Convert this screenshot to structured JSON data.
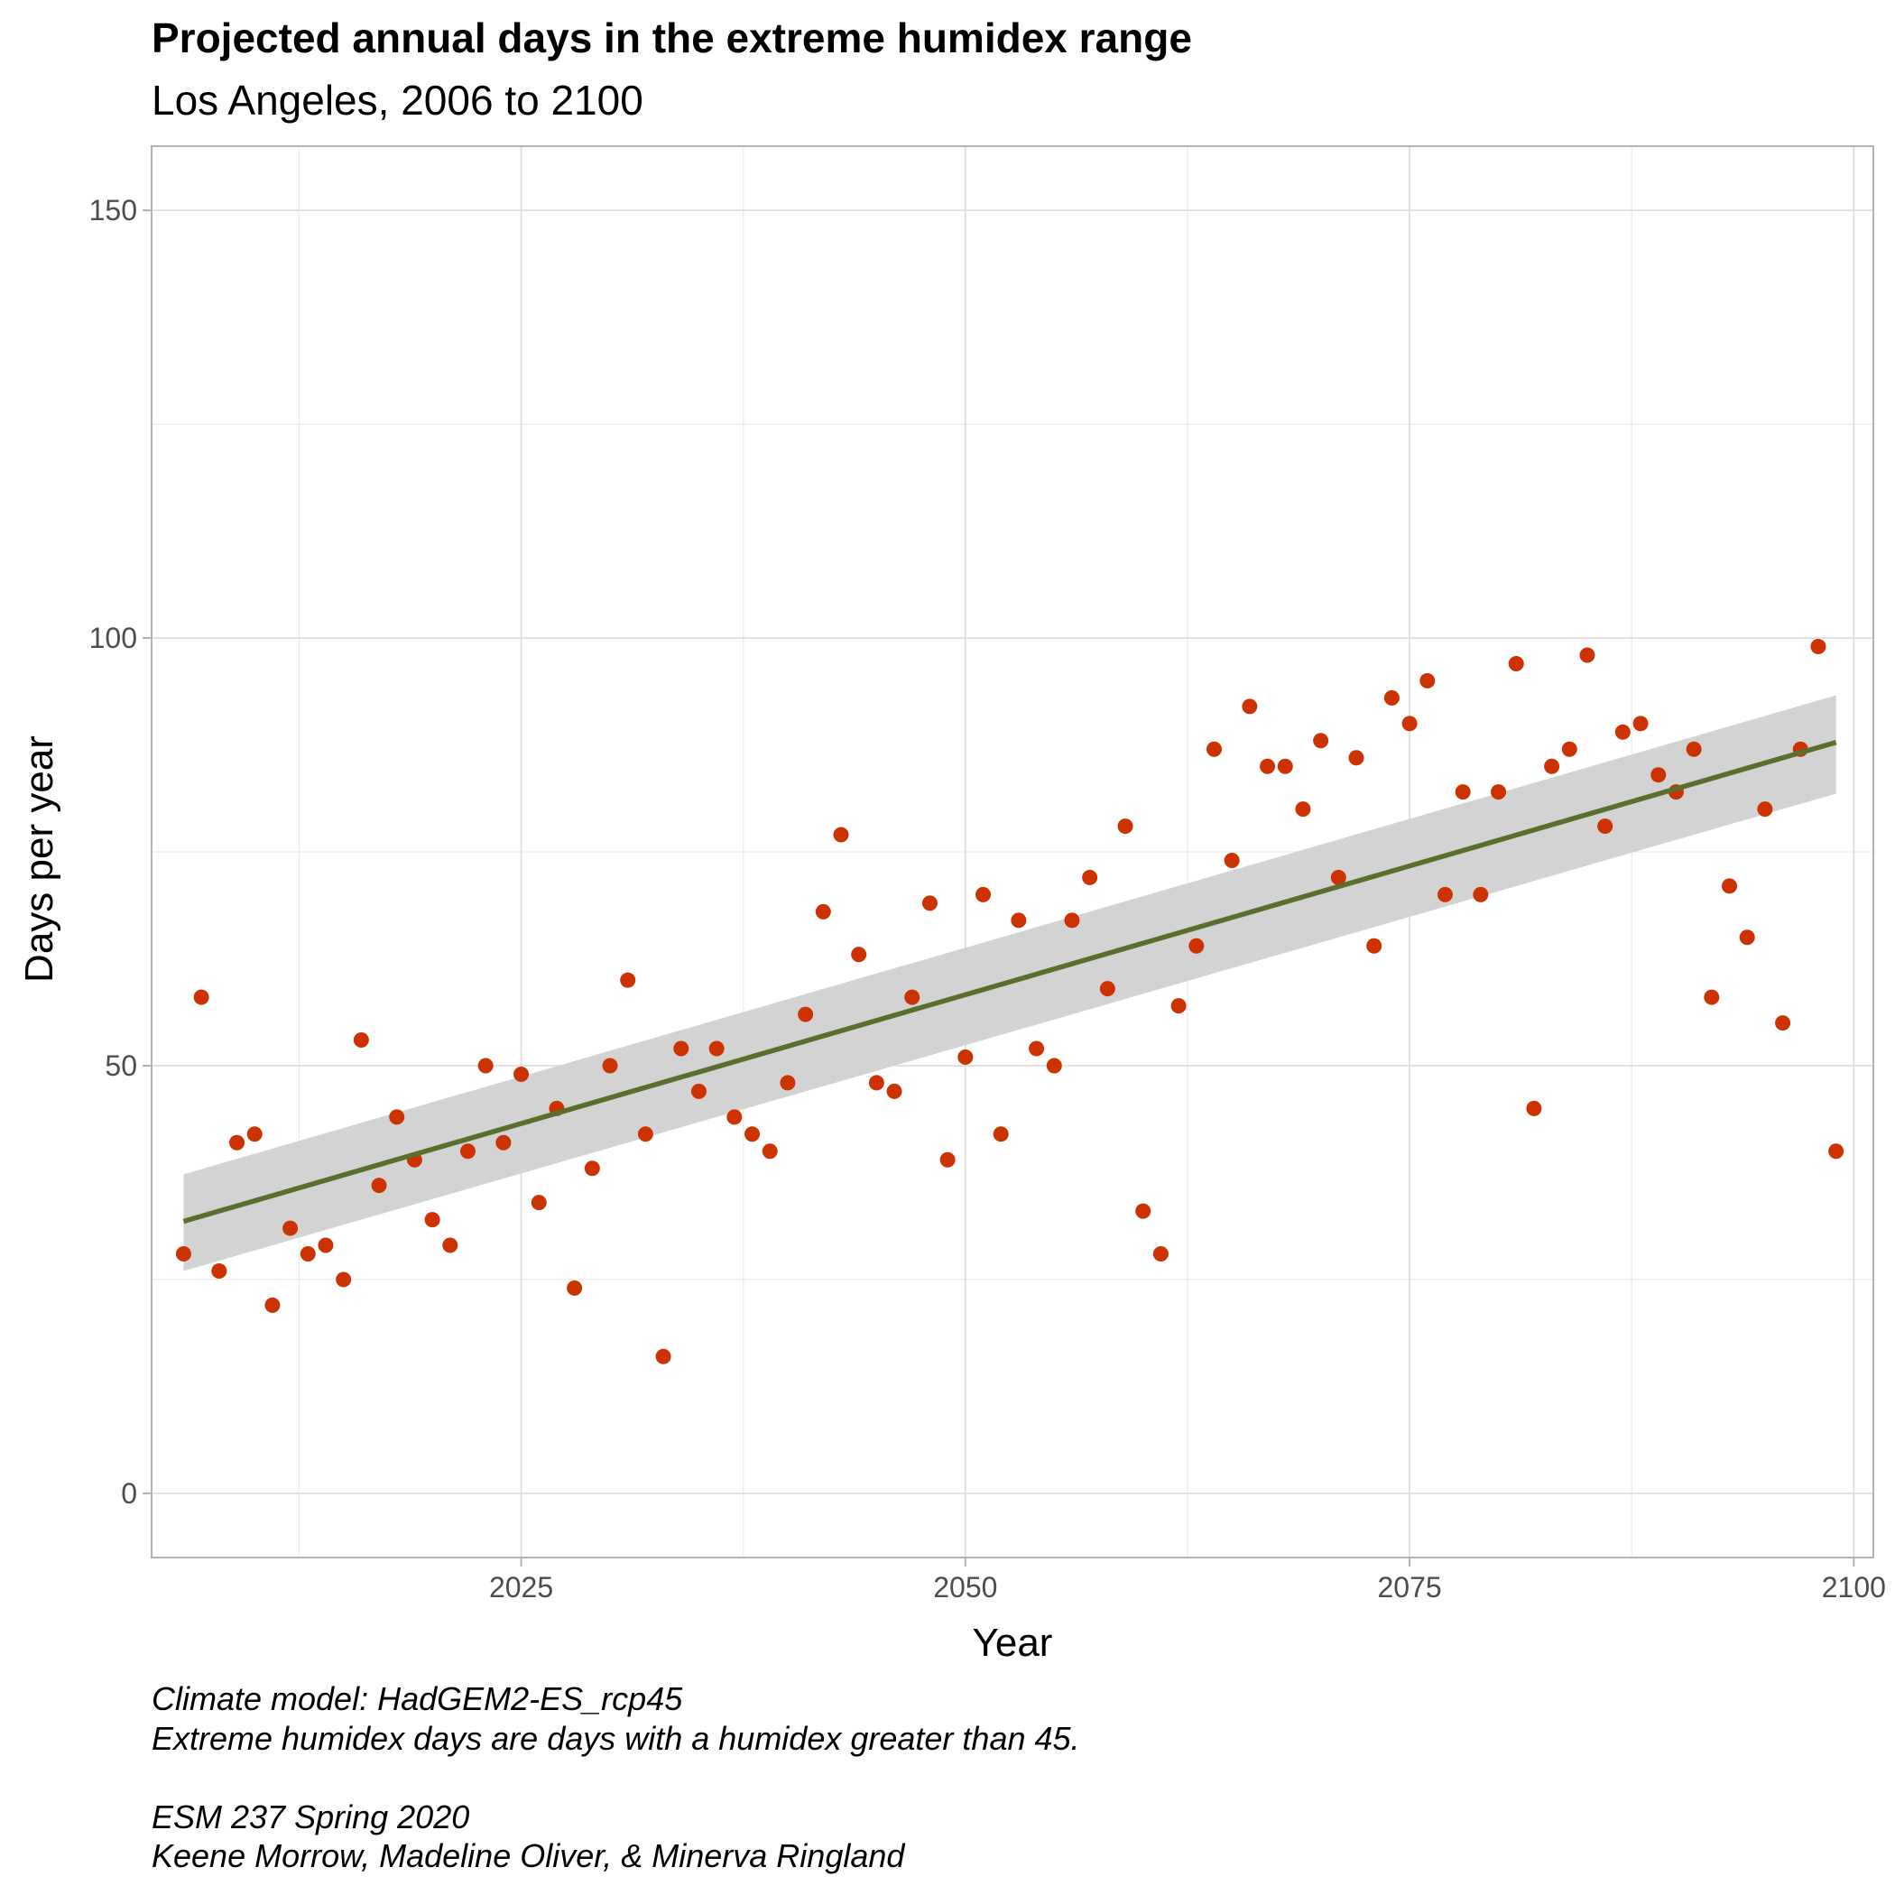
{
  "chart_data": {
    "type": "scatter",
    "title": "Projected annual days in the extreme humidex range",
    "subtitle": "Los Angeles, 2006 to 2100",
    "xlabel": "Year",
    "ylabel": "Days per year",
    "xlim": [
      2004.2,
      2101.1
    ],
    "ylim": [
      -7.5,
      157.5
    ],
    "x_ticks": [
      2025,
      2050,
      2075,
      2100
    ],
    "y_ticks": [
      0,
      50,
      100,
      150
    ],
    "grid": true,
    "point_color": "#CC3300",
    "trend_color": "#5A6E2E",
    "ribbon_color": "#D3D3D3",
    "series": [
      {
        "x": [
          2006,
          2007,
          2008,
          2009,
          2010,
          2011,
          2012,
          2013,
          2014,
          2015,
          2016,
          2017,
          2018,
          2019,
          2020,
          2021,
          2022,
          2023,
          2024,
          2025,
          2026,
          2027,
          2028,
          2029,
          2030,
          2031,
          2032,
          2033,
          2034,
          2035,
          2036,
          2037,
          2038,
          2039,
          2040,
          2041,
          2042,
          2043,
          2044,
          2045,
          2046,
          2047,
          2048,
          2049,
          2050,
          2051,
          2052,
          2053,
          2054,
          2055,
          2056,
          2057,
          2058,
          2059,
          2060,
          2061,
          2062,
          2063,
          2064,
          2065,
          2066,
          2067,
          2068,
          2069,
          2070,
          2071,
          2072,
          2073,
          2074,
          2075,
          2076,
          2077,
          2078,
          2079,
          2080,
          2081,
          2082,
          2083,
          2084,
          2085,
          2086,
          2087,
          2088,
          2089,
          2090,
          2091,
          2092,
          2093,
          2094,
          2095,
          2096,
          2097,
          2098,
          2099
        ],
        "values": [
          28,
          58,
          26,
          41,
          42,
          22,
          31,
          28,
          29,
          25,
          53,
          36,
          44,
          39,
          32,
          29,
          40,
          50,
          41,
          49,
          34,
          45,
          24,
          38,
          50,
          60,
          42,
          16,
          52,
          47,
          52,
          44,
          42,
          40,
          48,
          56,
          68,
          77,
          63,
          48,
          47,
          58,
          69,
          39,
          51,
          70,
          42,
          67,
          52,
          50,
          67,
          72,
          59,
          78,
          33,
          28,
          57,
          64,
          87,
          74,
          92,
          85,
          85,
          80,
          88,
          72,
          86,
          64,
          93,
          90,
          95,
          70,
          82,
          70,
          82,
          97,
          45,
          85,
          87,
          98,
          78,
          89,
          90,
          84,
          82,
          87,
          58,
          71,
          65,
          80,
          55,
          87,
          99,
          40
        ]
      }
    ],
    "trend": {
      "x_start": 2006,
      "y_start": 31.8,
      "x_end": 2099,
      "y_end": 87.8,
      "band_start": [
        26.0,
        37.3
      ],
      "band_end": [
        81.8,
        93.3
      ]
    },
    "caption": [
      "Climate model: HadGEM2-ES_rcp45",
      "Extreme humidex days are days with a humidex greater than 45.",
      "",
      "ESM 237 Spring 2020",
      "Keene Morrow, Madeline Oliver, & Minerva Ringland"
    ]
  }
}
